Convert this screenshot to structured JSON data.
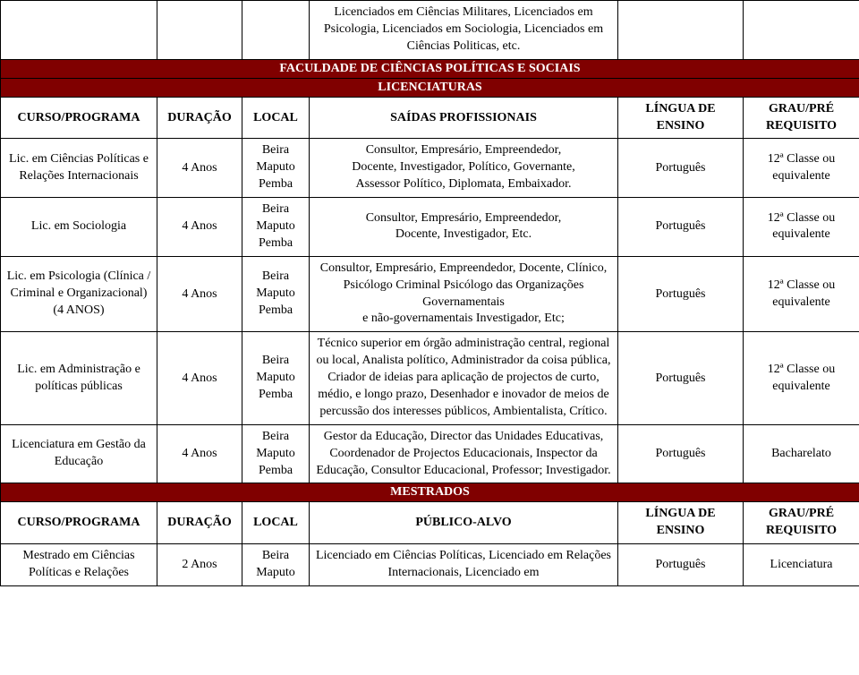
{
  "colors": {
    "band_bg": "#800000",
    "band_fg": "#ffffff",
    "border": "#000000",
    "page_bg": "#ffffff",
    "text": "#000000"
  },
  "fonts": {
    "family": "Times New Roman",
    "base_size_pt": 11,
    "header_size_pt": 11,
    "header_weight": "bold"
  },
  "columns": {
    "curso_width": 175,
    "duracao_width": 95,
    "local_width": 75,
    "saidas_width": 345,
    "lingua_width": 140,
    "grau_width": 130
  },
  "top_carry": {
    "saidas": "Licenciados em Ciências Militares, Licenciados em Psicologia, Licenciados em Sociologia, Licenciados em Ciências Politicas, etc."
  },
  "faculty_band": {
    "line1": "FACULDADE DE CIÊNCIAS POLÍTICAS E SOCIAIS",
    "line2": "LICENCIATURAS"
  },
  "lic_header": {
    "curso": "CURSO/PROGRAMA",
    "duracao": "DURAÇÃO",
    "local": "LOCAL",
    "saidas": "SAÍDAS PROFISSIONAIS",
    "lingua": "LÍNGUA DE ENSINO",
    "grau": "GRAU/PRÉ REQUISITO"
  },
  "lic_rows": [
    {
      "curso": "Lic. em Ciências Políticas e Relações Internacionais",
      "duracao": "4 Anos",
      "local": "Beira\nMaputo\nPemba",
      "saidas": "Consultor, Empresário, Empreendedor,\nDocente, Investigador, Político, Governante,\nAssessor Político, Diplomata, Embaixador.",
      "lingua": "Português",
      "grau": "12ª Classe ou equivalente"
    },
    {
      "curso": "Lic. em Sociologia",
      "duracao": "4 Anos",
      "local": "Beira\nMaputo\nPemba",
      "saidas": "Consultor, Empresário, Empreendedor,\nDocente, Investigador, Etc.",
      "lingua": "Português",
      "grau": "12ª Classe ou equivalente"
    },
    {
      "curso": "Lic. em Psicologia (Clínica / Criminal e Organizacional) (4 ANOS)",
      "duracao": "4 Anos",
      "local": "Beira\nMaputo\nPemba",
      "saidas": "Consultor, Empresário, Empreendedor, Docente, Clínico, Psicólogo Criminal Psicólogo das Organizações Governamentais\ne não-governamentais Investigador, Etc;",
      "lingua": "Português",
      "grau": "12ª Classe ou equivalente"
    },
    {
      "curso": "Lic. em Administração e políticas públicas",
      "duracao": "4 Anos",
      "local": "Beira\nMaputo\nPemba",
      "saidas": "Técnico superior em órgão administração central, regional ou local, Analista político, Administrador da coisa pública, Criador de ideias para aplicação de projectos de curto, médio, e longo prazo, Desenhador e inovador de meios de percussão dos interesses públicos, Ambientalista, Crítico.",
      "lingua": "Português",
      "grau": "12ª Classe ou equivalente"
    },
    {
      "curso": "Licenciatura em Gestão da Educação",
      "duracao": "4 Anos",
      "local": "Beira\nMaputo\nPemba",
      "saidas": "Gestor da Educação, Director das Unidades Educativas, Coordenador de Projectos Educacionais, Inspector da Educação, Consultor Educacional, Professor; Investigador.",
      "lingua": "Português",
      "grau": "Bacharelato"
    }
  ],
  "mest_band": {
    "title": "MESTRADOS"
  },
  "mest_header": {
    "curso": "CURSO/PROGRAMA",
    "duracao": "DURAÇÃO",
    "local": "LOCAL",
    "publico": "PÚBLICO-ALVO",
    "lingua": "LÍNGUA DE ENSINO",
    "grau": "GRAU/PRÉ REQUISITO"
  },
  "mest_rows": [
    {
      "curso": "Mestrado em Ciências Políticas e Relações",
      "duracao": "2 Anos",
      "local": "Beira\nMaputo",
      "publico": "Licenciado em Ciências Políticas, Licenciado em Relações Internacionais, Licenciado em",
      "lingua": "Português",
      "grau": "Licenciatura"
    }
  ]
}
